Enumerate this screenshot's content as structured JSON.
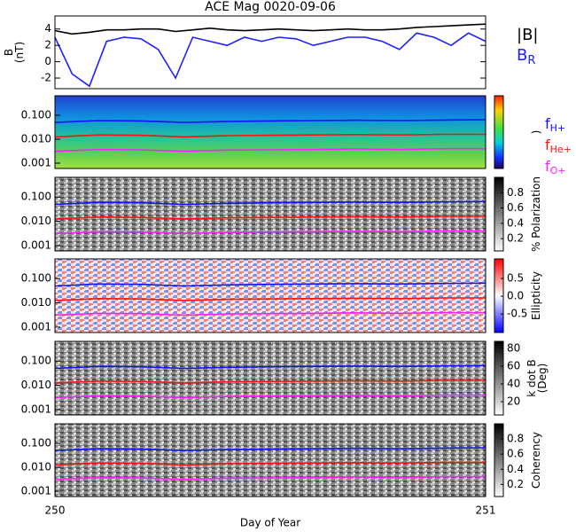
{
  "chart_data": [
    {
      "type": "line",
      "title": "ACE Mag 0020-09-06",
      "ylabel": "B",
      "yunit": "(nT)",
      "x": [
        250,
        250.04,
        250.08,
        250.12,
        250.16,
        250.2,
        250.24,
        250.28,
        250.32,
        250.36,
        250.4,
        250.44,
        250.48,
        250.52,
        250.56,
        250.6,
        250.64,
        250.68,
        250.72,
        250.76,
        250.8,
        250.84,
        250.88,
        250.92,
        250.96,
        251
      ],
      "series": [
        {
          "name": "|B|",
          "color": "#000000",
          "values": [
            3.8,
            3.4,
            3.6,
            3.9,
            3.9,
            4.0,
            4.0,
            3.7,
            3.9,
            4.1,
            3.9,
            3.8,
            3.9,
            4.0,
            3.9,
            3.8,
            3.9,
            4.0,
            3.9,
            3.9,
            4.0,
            4.2,
            4.3,
            4.4,
            4.5,
            4.6
          ]
        },
        {
          "name": "B",
          "subscript": "R",
          "color": "#2020ff",
          "values": [
            3.0,
            -1.5,
            -3.0,
            2.5,
            3.0,
            2.8,
            1.5,
            -2.0,
            3.0,
            2.5,
            2.0,
            3.0,
            2.5,
            3.0,
            2.8,
            2.0,
            2.5,
            3.0,
            3.0,
            2.5,
            1.5,
            3.5,
            3.0,
            2.0,
            3.5,
            2.5
          ]
        }
      ],
      "xlim": [
        250,
        251
      ],
      "ylim": [
        -3.3,
        5.6
      ],
      "yticks": [
        -2,
        0,
        2,
        4
      ]
    },
    {
      "type": "spectrogram",
      "colormap": "rainbow",
      "colorbar_label": ")",
      "xlim": [
        250,
        251
      ],
      "ylog": true,
      "ylim": [
        0.0006,
        0.65
      ],
      "yticks": [
        {
          "value": 0.1,
          "label": "0.100"
        },
        {
          "value": 0.01,
          "label": "0.010"
        },
        {
          "value": 0.001,
          "label": "0.001"
        }
      ]
    },
    {
      "type": "spectrogram",
      "colormap": "gray",
      "colorbar_label": "% Polarization",
      "colorbar_lim": [
        0.04,
        1.0
      ],
      "colorbar_ticks": [
        0.2,
        0.4,
        0.6,
        0.8
      ],
      "xlim": [
        250,
        251
      ],
      "ylog": true,
      "ylim": [
        0.0006,
        0.65
      ],
      "yticks": [
        {
          "value": 0.1,
          "label": "0.100"
        },
        {
          "value": 0.01,
          "label": "0.010"
        },
        {
          "value": 0.001,
          "label": "0.001"
        }
      ]
    },
    {
      "type": "spectrogram",
      "colormap": "bwr",
      "colorbar_label": "Ellipticity",
      "colorbar_lim": [
        -1.02,
        1.05
      ],
      "colorbar_ticks": [
        -0.5,
        {
          "value": 0,
          "label": "0.0"
        },
        0.5
      ],
      "xlim": [
        250,
        251
      ],
      "ylog": true,
      "ylim": [
        0.0006,
        0.65
      ],
      "yticks": [
        {
          "value": 0.1,
          "label": "0.100"
        },
        {
          "value": 0.01,
          "label": "0.010"
        },
        {
          "value": 0.001,
          "label": "0.001"
        }
      ]
    },
    {
      "type": "spectrogram",
      "colormap": "gray",
      "colorbar_label": "k dot B",
      "colorbar_unit": "(Deg)",
      "colorbar_lim": [
        5,
        88
      ],
      "colorbar_ticks": [
        20,
        40,
        60,
        80
      ],
      "xlim": [
        250,
        251
      ],
      "ylog": true,
      "ylim": [
        0.0006,
        0.65
      ],
      "yticks": [
        {
          "value": 0.1,
          "label": "0.100"
        },
        {
          "value": 0.01,
          "label": "0.010"
        },
        {
          "value": 0.001,
          "label": "0.001"
        }
      ]
    },
    {
      "type": "spectrogram",
      "colormap": "gray",
      "colorbar_label": "Coherency",
      "colorbar_lim": [
        0.04,
        1.0
      ],
      "colorbar_ticks": [
        0.2,
        0.4,
        0.6,
        0.8
      ],
      "xlim": [
        250,
        251
      ],
      "ylog": true,
      "ylim": [
        0.0006,
        0.65
      ],
      "yticks": [
        {
          "value": 0.1,
          "label": "0.100"
        },
        {
          "value": 0.01,
          "label": "0.010"
        },
        {
          "value": 0.001,
          "label": "0.001"
        }
      ],
      "xticks": [
        250,
        251
      ],
      "xlabel": "Day of Year"
    }
  ],
  "gyrofrequencies": {
    "x": [
      250,
      250.1,
      250.2,
      250.3,
      250.4,
      250.5,
      250.6,
      250.7,
      250.8,
      250.9,
      251
    ],
    "series": [
      {
        "name": "f",
        "subscript": "H+",
        "color": "#1010ff",
        "values": [
          0.05,
          0.06,
          0.058,
          0.05,
          0.055,
          0.058,
          0.06,
          0.062,
          0.06,
          0.063,
          0.065
        ]
      },
      {
        "name": "f",
        "subscript": "He+",
        "color": "#ff1010",
        "values": [
          0.0125,
          0.015,
          0.0145,
          0.0125,
          0.014,
          0.0145,
          0.015,
          0.0155,
          0.015,
          0.016,
          0.016
        ]
      },
      {
        "name": "f",
        "subscript": "O+",
        "color": "#ff20ff",
        "values": [
          0.0031,
          0.0037,
          0.0036,
          0.0031,
          0.0035,
          0.0036,
          0.0037,
          0.0039,
          0.0037,
          0.004,
          0.004
        ]
      }
    ]
  }
}
